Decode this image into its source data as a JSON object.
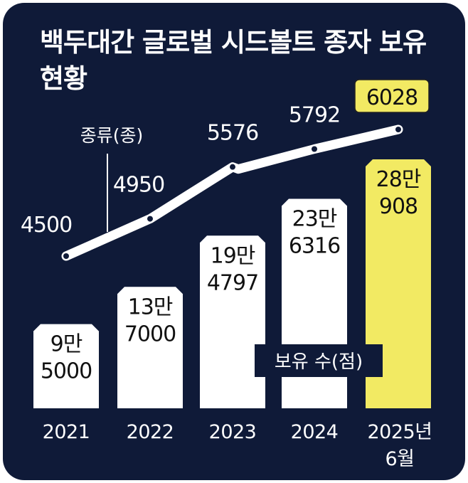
{
  "title": "백두대간 글로벌 시드볼트 종자 보유 현황",
  "colors": {
    "background": "#0f1a38",
    "bar": "#ffffff",
    "bar_highlight": "#f2ea63",
    "line": "#ffffff",
    "point": "#0f1a38",
    "text_light": "#ffffff",
    "text_dark": "#111111"
  },
  "chart_data": {
    "type": "bar+line",
    "categories": [
      "2021",
      "2022",
      "2023",
      "2024",
      "2025년 6월"
    ],
    "category_lines": [
      [
        "2021"
      ],
      [
        "2022"
      ],
      [
        "2023"
      ],
      [
        "2024"
      ],
      [
        "2025년",
        "6월"
      ]
    ],
    "series": [
      {
        "name": "보유 수(점)",
        "type": "bar",
        "values": [
          95000,
          137000,
          194797,
          236316,
          280908
        ],
        "labels": [
          [
            "9만",
            "5000"
          ],
          [
            "13만",
            "7000"
          ],
          [
            "19만",
            "4797"
          ],
          [
            "23만",
            "6316"
          ],
          [
            "28만",
            "908"
          ]
        ],
        "highlight_index": 4
      },
      {
        "name": "종류(종)",
        "type": "line",
        "values": [
          4500,
          4950,
          5576,
          5792,
          6028
        ],
        "highlight_index": 4
      }
    ]
  }
}
